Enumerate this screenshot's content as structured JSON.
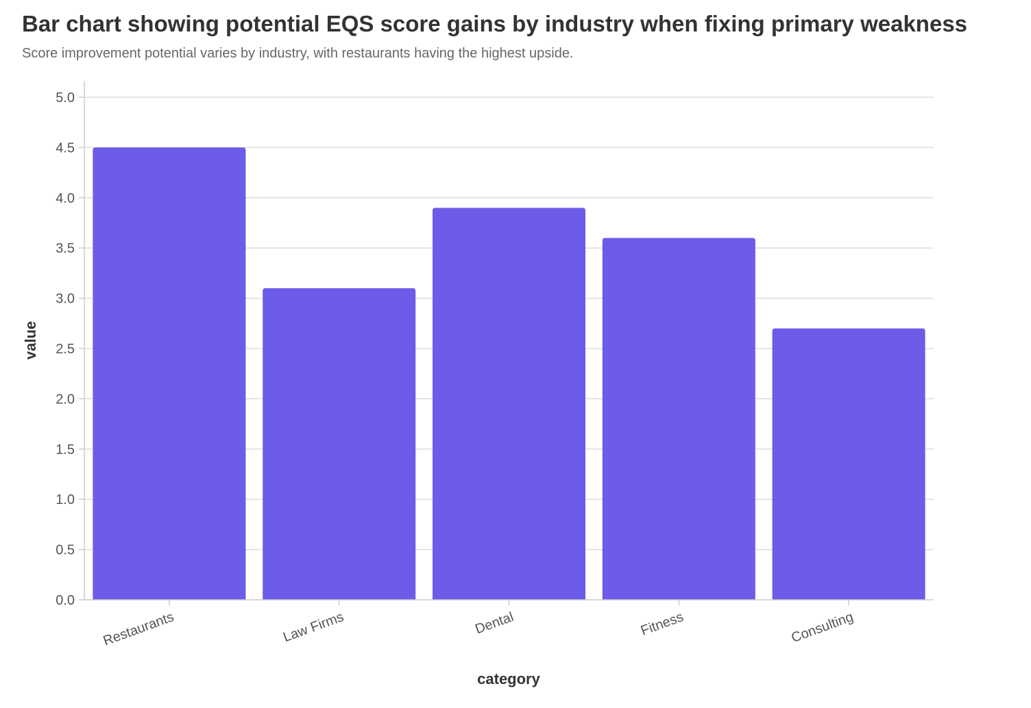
{
  "chart_data": {
    "type": "bar",
    "title": "Bar chart showing potential EQS score gains by industry when fixing primary weakness",
    "subtitle": "Score improvement potential varies by industry, with restaurants having the highest upside.",
    "xlabel": "category",
    "ylabel": "value",
    "categories": [
      "Restaurants",
      "Law Firms",
      "Dental",
      "Fitness",
      "Consulting"
    ],
    "values": [
      4.5,
      3.1,
      3.9,
      3.6,
      2.7
    ],
    "ylim": [
      0,
      5.0
    ],
    "yticks": [
      "0.0",
      "0.5",
      "1.0",
      "1.5",
      "2.0",
      "2.5",
      "3.0",
      "3.5",
      "4.0",
      "4.5",
      "5.0"
    ],
    "bar_color": "#6c5ce7",
    "grid": true,
    "legend": "none"
  }
}
